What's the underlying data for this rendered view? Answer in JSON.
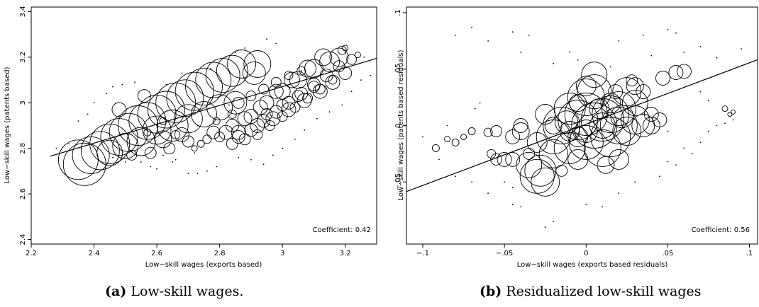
{
  "chart_data": [
    {
      "type": "scatter",
      "panel": "a",
      "caption_tag": "(a)",
      "caption": "Low-skill wages.",
      "xlabel": "Low−skill wages (exports based)",
      "ylabel": "Low−skill wages (patents based)",
      "xlim": [
        2.2,
        3.3
      ],
      "ylim": [
        2.38,
        3.42
      ],
      "xticks": [
        2.2,
        2.4,
        2.6,
        2.8,
        3,
        3.2
      ],
      "xtick_labels": [
        "2.2",
        "2.4",
        "2.6",
        "2.8",
        "3",
        "3.2"
      ],
      "yticks": [
        2.4,
        2.6,
        2.8,
        3,
        3.2,
        3.4
      ],
      "ytick_labels": [
        "2.4",
        "2.6",
        "2.8",
        "3",
        "3.2",
        "3.4"
      ],
      "annotation": "Coefficient: 0.42",
      "fit_line": {
        "x": [
          2.26,
          3.3
        ],
        "y": [
          2.765,
          3.195
        ]
      },
      "grid": false,
      "marker": "hollow circles sized by weight",
      "points": [
        [
          2.37,
          2.73,
          30
        ],
        [
          2.35,
          2.75,
          28
        ],
        [
          2.39,
          2.77,
          26
        ],
        [
          2.42,
          2.79,
          27
        ],
        [
          2.45,
          2.82,
          28
        ],
        [
          2.48,
          2.85,
          26
        ],
        [
          2.51,
          2.87,
          27
        ],
        [
          2.54,
          2.9,
          28
        ],
        [
          2.57,
          2.92,
          26
        ],
        [
          2.6,
          2.95,
          27
        ],
        [
          2.63,
          2.97,
          26
        ],
        [
          2.66,
          3.0,
          28
        ],
        [
          2.69,
          3.02,
          26
        ],
        [
          2.72,
          3.05,
          27
        ],
        [
          2.75,
          3.07,
          26
        ],
        [
          2.78,
          3.1,
          25
        ],
        [
          2.81,
          3.12,
          24
        ],
        [
          2.84,
          3.14,
          22
        ],
        [
          2.87,
          3.17,
          20
        ],
        [
          2.92,
          3.17,
          19
        ],
        [
          2.91,
          3.13,
          16
        ],
        [
          2.6,
          2.88,
          20
        ],
        [
          2.65,
          2.9,
          22
        ],
        [
          2.7,
          2.93,
          20
        ],
        [
          2.55,
          2.83,
          20
        ],
        [
          2.5,
          2.81,
          18
        ],
        [
          2.45,
          2.78,
          18
        ],
        [
          2.75,
          2.95,
          18
        ],
        [
          2.8,
          2.98,
          18
        ],
        [
          2.85,
          3.0,
          16
        ],
        [
          2.48,
          2.97,
          10
        ],
        [
          2.56,
          3.03,
          9
        ],
        [
          2.62,
          2.84,
          12
        ],
        [
          2.68,
          2.86,
          10
        ],
        [
          2.58,
          2.78,
          8
        ],
        [
          2.64,
          2.8,
          8
        ],
        [
          2.52,
          2.77,
          7
        ],
        [
          2.7,
          2.83,
          8
        ],
        [
          2.78,
          2.87,
          9
        ],
        [
          2.9,
          2.94,
          10
        ],
        [
          2.95,
          3.0,
          10
        ],
        [
          3.0,
          3.05,
          11
        ],
        [
          3.05,
          3.1,
          12
        ],
        [
          3.1,
          3.15,
          13
        ],
        [
          3.15,
          3.18,
          14
        ],
        [
          3.18,
          3.2,
          13
        ],
        [
          3.13,
          3.2,
          12
        ],
        [
          3.08,
          3.15,
          12
        ],
        [
          3.03,
          3.1,
          11
        ],
        [
          2.98,
          3.05,
          10
        ],
        [
          2.93,
          2.98,
          10
        ],
        [
          2.88,
          2.93,
          10
        ],
        [
          2.84,
          2.9,
          9
        ],
        [
          2.82,
          2.87,
          10
        ],
        [
          2.86,
          2.85,
          9
        ],
        [
          2.9,
          2.88,
          9
        ],
        [
          2.94,
          2.92,
          9
        ],
        [
          2.98,
          2.96,
          9
        ],
        [
          3.02,
          3.0,
          9
        ],
        [
          3.06,
          3.04,
          9
        ],
        [
          3.1,
          3.08,
          9
        ],
        [
          3.14,
          3.12,
          9
        ],
        [
          3.18,
          3.16,
          8
        ],
        [
          3.22,
          3.19,
          7
        ],
        [
          2.84,
          2.82,
          8
        ],
        [
          2.88,
          2.84,
          8
        ],
        [
          2.92,
          2.86,
          7
        ],
        [
          2.96,
          2.9,
          7
        ],
        [
          3.0,
          2.94,
          7
        ],
        [
          3.04,
          2.98,
          7
        ],
        [
          3.08,
          3.02,
          7
        ],
        [
          3.12,
          3.06,
          7
        ],
        [
          3.16,
          3.1,
          6
        ],
        [
          2.86,
          3.0,
          8
        ],
        [
          2.9,
          3.03,
          7
        ],
        [
          2.94,
          3.06,
          7
        ],
        [
          2.98,
          3.09,
          7
        ],
        [
          3.02,
          3.12,
          6
        ],
        [
          3.06,
          3.14,
          6
        ],
        [
          2.95,
          2.95,
          8
        ],
        [
          3.0,
          2.99,
          8
        ],
        [
          3.05,
          3.03,
          8
        ],
        [
          3.1,
          3.07,
          8
        ],
        [
          2.8,
          2.85,
          7
        ],
        [
          2.76,
          2.84,
          6
        ],
        [
          2.74,
          2.82,
          5
        ],
        [
          2.72,
          2.8,
          4
        ],
        [
          2.84,
          2.95,
          6
        ],
        [
          2.79,
          2.92,
          5
        ],
        [
          3.19,
          3.23,
          6
        ],
        [
          3.24,
          3.21,
          4
        ],
        [
          3.2,
          3.24,
          4
        ],
        [
          2.66,
          2.86,
          6
        ],
        [
          2.62,
          2.92,
          5
        ],
        [
          2.57,
          2.87,
          5
        ],
        [
          2.86,
          2.87,
          10
        ],
        [
          2.92,
          2.9,
          10
        ],
        [
          2.97,
          2.93,
          10
        ],
        [
          3.02,
          2.97,
          10
        ],
        [
          3.07,
          3.01,
          10
        ],
        [
          3.12,
          3.05,
          10
        ],
        [
          3.16,
          3.09,
          10
        ],
        [
          3.2,
          3.13,
          9
        ]
      ],
      "dots": [
        [
          2.28,
          2.8
        ],
        [
          2.32,
          2.82
        ],
        [
          2.35,
          2.92
        ],
        [
          2.38,
          2.95
        ],
        [
          2.4,
          3.0
        ],
        [
          2.44,
          3.04
        ],
        [
          2.46,
          3.07
        ],
        [
          2.49,
          3.08
        ],
        [
          2.53,
          3.09
        ],
        [
          2.55,
          2.74
        ],
        [
          2.58,
          2.72
        ],
        [
          2.6,
          2.71
        ],
        [
          2.65,
          2.74
        ],
        [
          2.7,
          2.69
        ],
        [
          2.73,
          2.69
        ],
        [
          2.76,
          2.7
        ],
        [
          2.79,
          2.72
        ],
        [
          2.72,
          2.78
        ],
        [
          2.73,
          2.9
        ],
        [
          2.74,
          3.13
        ],
        [
          2.77,
          3.15
        ],
        [
          2.82,
          3.2
        ],
        [
          2.85,
          3.22
        ],
        [
          2.88,
          3.24
        ],
        [
          2.95,
          3.28
        ],
        [
          2.98,
          3.26
        ],
        [
          2.86,
          2.76
        ],
        [
          2.9,
          2.75
        ],
        [
          2.94,
          2.73
        ],
        [
          2.97,
          2.77
        ],
        [
          3.0,
          2.8
        ],
        [
          3.04,
          2.84
        ],
        [
          3.07,
          2.88
        ],
        [
          3.11,
          2.93
        ],
        [
          3.15,
          2.96
        ],
        [
          3.19,
          2.99
        ],
        [
          3.22,
          3.05
        ],
        [
          3.25,
          3.1
        ],
        [
          3.28,
          3.12
        ],
        [
          3.26,
          3.2
        ],
        [
          3.06,
          3.14
        ],
        [
          3.2,
          3.22
        ],
        [
          2.62,
          2.77
        ],
        [
          2.66,
          2.75
        ],
        [
          2.5,
          2.74
        ],
        [
          2.46,
          2.76
        ],
        [
          2.78,
          3.03
        ],
        [
          2.83,
          2.99
        ],
        [
          2.63,
          3.08
        ],
        [
          2.68,
          3.13
        ],
        [
          2.41,
          2.77
        ],
        [
          2.36,
          2.8
        ]
      ]
    },
    {
      "type": "scatter",
      "panel": "b",
      "caption_tag": "(b)",
      "caption": "Residualized low-skill wages",
      "xlabel": "Low−skill wages (exports based residuals)",
      "ylabel": "Low−skill wages (patents based residuals)",
      "xlim": [
        -0.11,
        0.105
      ],
      "ylim": [
        -0.105,
        0.105
      ],
      "xticks": [
        -0.1,
        -0.05,
        0,
        0.05,
        0.1
      ],
      "xtick_labels": [
        "−.1",
        "−.05",
        "0",
        ".05",
        ".1"
      ],
      "yticks": [
        -0.05,
        0,
        0.05,
        0.1
      ],
      "ytick_labels": [
        "−.05",
        "0",
        ".05",
        ".1"
      ],
      "annotation": "Coefficient: 0.56",
      "fit_line": {
        "x": [
          -0.11,
          0.105
        ],
        "y": [
          -0.0585,
          0.0583
        ]
      },
      "grid": false,
      "marker": "hollow circles sized by weight",
      "points": [
        [
          -0.03,
          -0.045,
          24
        ],
        [
          -0.028,
          -0.04,
          22
        ],
        [
          -0.025,
          -0.05,
          20
        ],
        [
          -0.035,
          -0.035,
          18
        ],
        [
          -0.02,
          -0.025,
          20
        ],
        [
          -0.01,
          -0.02,
          22
        ],
        [
          0.0,
          -0.015,
          24
        ],
        [
          0.01,
          -0.02,
          26
        ],
        [
          0.015,
          -0.01,
          28
        ],
        [
          0.02,
          0.0,
          26
        ],
        [
          0.0,
          0.01,
          30
        ],
        [
          -0.005,
          0.005,
          28
        ],
        [
          0.005,
          0.0,
          32
        ],
        [
          0.01,
          0.005,
          30
        ],
        [
          0.015,
          0.01,
          26
        ],
        [
          0.02,
          0.015,
          24
        ],
        [
          0.0,
          0.025,
          26
        ],
        [
          0.005,
          0.03,
          24
        ],
        [
          0.025,
          0.03,
          20
        ],
        [
          0.03,
          0.02,
          18
        ],
        [
          -0.01,
          0.015,
          22
        ],
        [
          -0.015,
          0.0,
          26
        ],
        [
          -0.02,
          -0.01,
          24
        ],
        [
          0.03,
          0.005,
          20
        ],
        [
          0.035,
          0.0,
          16
        ],
        [
          0.025,
          -0.005,
          20
        ],
        [
          0.02,
          -0.03,
          14
        ],
        [
          0.012,
          -0.035,
          12
        ],
        [
          -0.005,
          -0.03,
          14
        ],
        [
          -0.03,
          -0.015,
          14
        ],
        [
          -0.04,
          -0.005,
          12
        ],
        [
          -0.045,
          -0.01,
          10
        ],
        [
          -0.04,
          0.0,
          10
        ],
        [
          -0.045,
          -0.03,
          10
        ],
        [
          -0.05,
          -0.03,
          10
        ],
        [
          -0.025,
          0.01,
          14
        ],
        [
          0.0,
          0.035,
          14
        ],
        [
          0.005,
          0.045,
          18
        ],
        [
          0.04,
          0.0,
          12
        ],
        [
          0.045,
          0.005,
          10
        ],
        [
          0.03,
          0.035,
          12
        ],
        [
          0.035,
          0.03,
          10
        ],
        [
          0.047,
          0.042,
          10
        ],
        [
          0.055,
          0.047,
          10
        ],
        [
          0.06,
          0.048,
          10
        ],
        [
          0.01,
          0.0,
          18
        ],
        [
          0.0,
          -0.005,
          16
        ],
        [
          -0.005,
          -0.01,
          14
        ],
        [
          0.015,
          0.02,
          14
        ],
        [
          -0.01,
          -0.005,
          14
        ],
        [
          -0.02,
          0.0,
          12
        ],
        [
          0.04,
          0.01,
          10
        ],
        [
          -0.015,
          -0.04,
          8
        ],
        [
          -0.035,
          -0.025,
          8
        ],
        [
          -0.055,
          -0.005,
          8
        ],
        [
          -0.06,
          -0.006,
          6
        ],
        [
          -0.07,
          -0.005,
          5
        ],
        [
          -0.075,
          -0.01,
          4
        ],
        [
          -0.08,
          -0.015,
          5
        ],
        [
          -0.085,
          -0.012,
          4
        ],
        [
          -0.092,
          -0.02,
          5
        ],
        [
          -0.055,
          -0.03,
          8
        ],
        [
          -0.058,
          -0.025,
          6
        ],
        [
          0.085,
          0.015,
          4
        ],
        [
          0.09,
          0.012,
          3
        ],
        [
          0.088,
          0.01,
          3
        ],
        [
          0.028,
          0.04,
          8
        ],
        [
          0.018,
          0.03,
          10
        ],
        [
          -0.005,
          0.02,
          12
        ],
        [
          0.008,
          0.015,
          14
        ],
        [
          -0.012,
          0.003,
          16
        ],
        [
          0.022,
          0.008,
          16
        ]
      ],
      "dots": [
        [
          -0.08,
          0.08
        ],
        [
          -0.07,
          0.087
        ],
        [
          -0.06,
          0.075
        ],
        [
          -0.04,
          0.065
        ],
        [
          -0.045,
          0.083
        ],
        [
          -0.035,
          0.08
        ],
        [
          -0.01,
          0.065
        ],
        [
          0.02,
          0.075
        ],
        [
          0.035,
          0.08
        ],
        [
          0.05,
          0.085
        ],
        [
          0.055,
          0.082
        ],
        [
          0.06,
          0.065
        ],
        [
          0.07,
          0.07
        ],
        [
          0.08,
          0.06
        ],
        [
          0.095,
          0.068
        ],
        [
          -0.1,
          -0.01
        ],
        [
          -0.09,
          -0.03
        ],
        [
          -0.085,
          0.0
        ],
        [
          -0.08,
          -0.045
        ],
        [
          -0.07,
          -0.05
        ],
        [
          -0.06,
          -0.06
        ],
        [
          -0.045,
          -0.07
        ],
        [
          -0.04,
          -0.072
        ],
        [
          -0.02,
          -0.085
        ],
        [
          -0.025,
          -0.09
        ],
        [
          0.0,
          -0.07
        ],
        [
          0.01,
          -0.072
        ],
        [
          0.02,
          -0.06
        ],
        [
          0.03,
          -0.05
        ],
        [
          0.045,
          -0.045
        ],
        [
          0.05,
          -0.032
        ],
        [
          0.055,
          -0.035
        ],
        [
          0.06,
          -0.02
        ],
        [
          0.065,
          -0.025
        ],
        [
          0.07,
          -0.015
        ],
        [
          0.075,
          -0.005
        ],
        [
          0.08,
          0.0
        ],
        [
          0.085,
          0.002
        ],
        [
          0.09,
          0.005
        ],
        [
          0.07,
          0.03
        ],
        [
          0.075,
          0.022
        ],
        [
          -0.02,
          0.055
        ],
        [
          -0.005,
          0.058
        ],
        [
          0.015,
          0.052
        ],
        [
          0.04,
          0.062
        ],
        [
          -0.065,
          0.02
        ],
        [
          -0.068,
          0.015
        ],
        [
          -0.05,
          -0.05
        ],
        [
          -0.045,
          -0.055
        ],
        [
          0.05,
          -0.005
        ]
      ]
    }
  ]
}
